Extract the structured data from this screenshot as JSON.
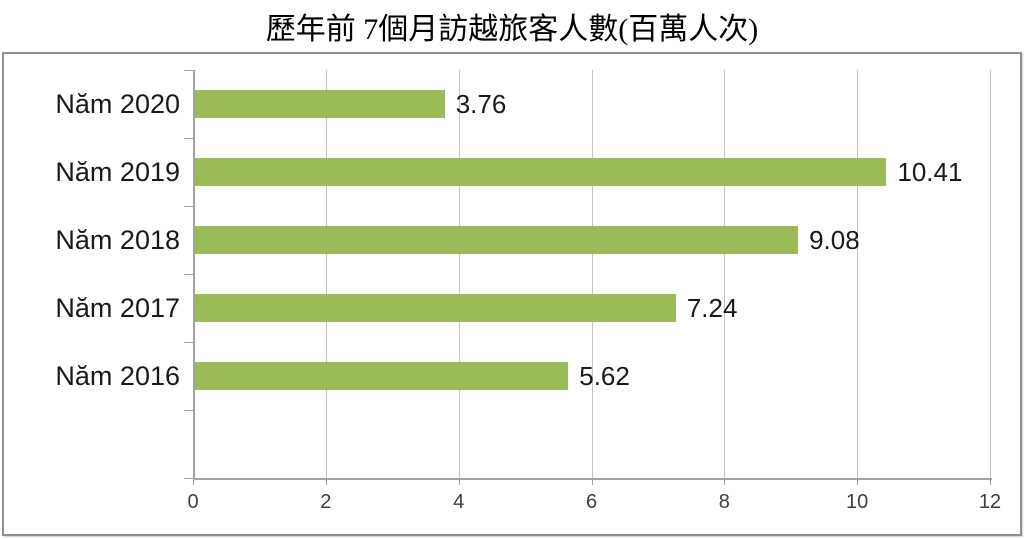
{
  "chart_title": "歷年前 7個月訪越旅客人數(百萬人次)",
  "chart_data": {
    "type": "bar",
    "orientation": "horizontal",
    "title": "歷年前 7個月訪越旅客人數(百萬人次)",
    "categories": [
      "Năm 2020",
      "Năm 2019",
      "Năm 2018",
      "Năm 2017",
      "Năm 2016"
    ],
    "values": [
      3.76,
      10.41,
      9.08,
      7.24,
      5.62
    ],
    "data_labels": [
      "3.76",
      "10.41",
      "9.08",
      "7.24",
      "5.62"
    ],
    "xlabel": "",
    "ylabel": "",
    "xlim": [
      0,
      12
    ],
    "xticks": [
      0,
      2,
      4,
      6,
      8,
      10,
      12
    ],
    "grid": "vertical-only",
    "legend_position": "none",
    "data_label_position": "outside-end",
    "empty_trailing_band": true
  },
  "style": {
    "bar_color": "#9BBB59",
    "gridline_color": "#C4C4C4",
    "axis_color": "#A3A3A3",
    "frame_border_color": "#8F8F8F",
    "category_label_color": "#1A1A1A",
    "value_label_color": "#1A1A1A",
    "tick_label_color": "#3F3F3F"
  }
}
